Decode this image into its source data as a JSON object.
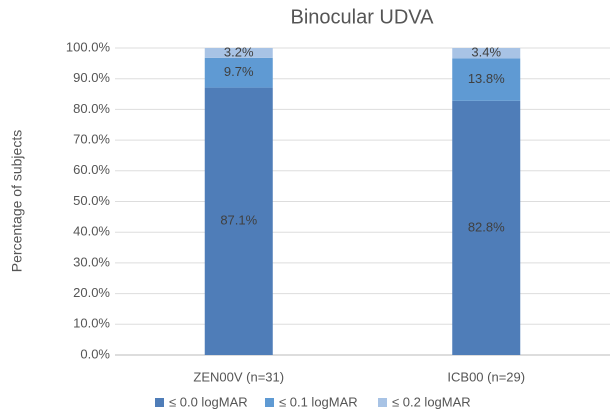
{
  "chart_data": {
    "type": "stacked_bar",
    "title": "Binocular UDVA",
    "y_label": "Percentage of subjects",
    "categories": [
      "ZEN00V (n=31)",
      "ICB00 (n=29)"
    ],
    "series": [
      {
        "name": "≤ 0.0 logMAR",
        "color": "#4f7db8",
        "values": [
          87.1,
          82.8
        ],
        "value_labels": [
          "87.1%",
          "82.8%"
        ]
      },
      {
        "name": "≤ 0.1 logMAR",
        "color": "#5f9ad3",
        "values": [
          9.7,
          13.8
        ],
        "value_labels": [
          "9.7%",
          "13.8%"
        ]
      },
      {
        "name": "≤ 0.2 logMAR",
        "color": "#a8c3e5",
        "values": [
          3.2,
          3.4
        ],
        "value_labels": [
          "3.2%",
          "3.4%"
        ]
      }
    ],
    "ylim": [
      0,
      100
    ],
    "yticks": [
      {
        "value": 0,
        "label": "0.0%"
      },
      {
        "value": 10,
        "label": "10.0%"
      },
      {
        "value": 20,
        "label": "20.0%"
      },
      {
        "value": 30,
        "label": "30.0%"
      },
      {
        "value": 40,
        "label": "40.0%"
      },
      {
        "value": 50,
        "label": "50.0%"
      },
      {
        "value": 60,
        "label": "60.0%"
      },
      {
        "value": 70,
        "label": "70.0%"
      },
      {
        "value": 80,
        "label": "80.0%"
      },
      {
        "value": 90,
        "label": "90.0%"
      },
      {
        "value": 100,
        "label": "100.0%"
      }
    ],
    "grid": true,
    "legend": "bottom"
  }
}
